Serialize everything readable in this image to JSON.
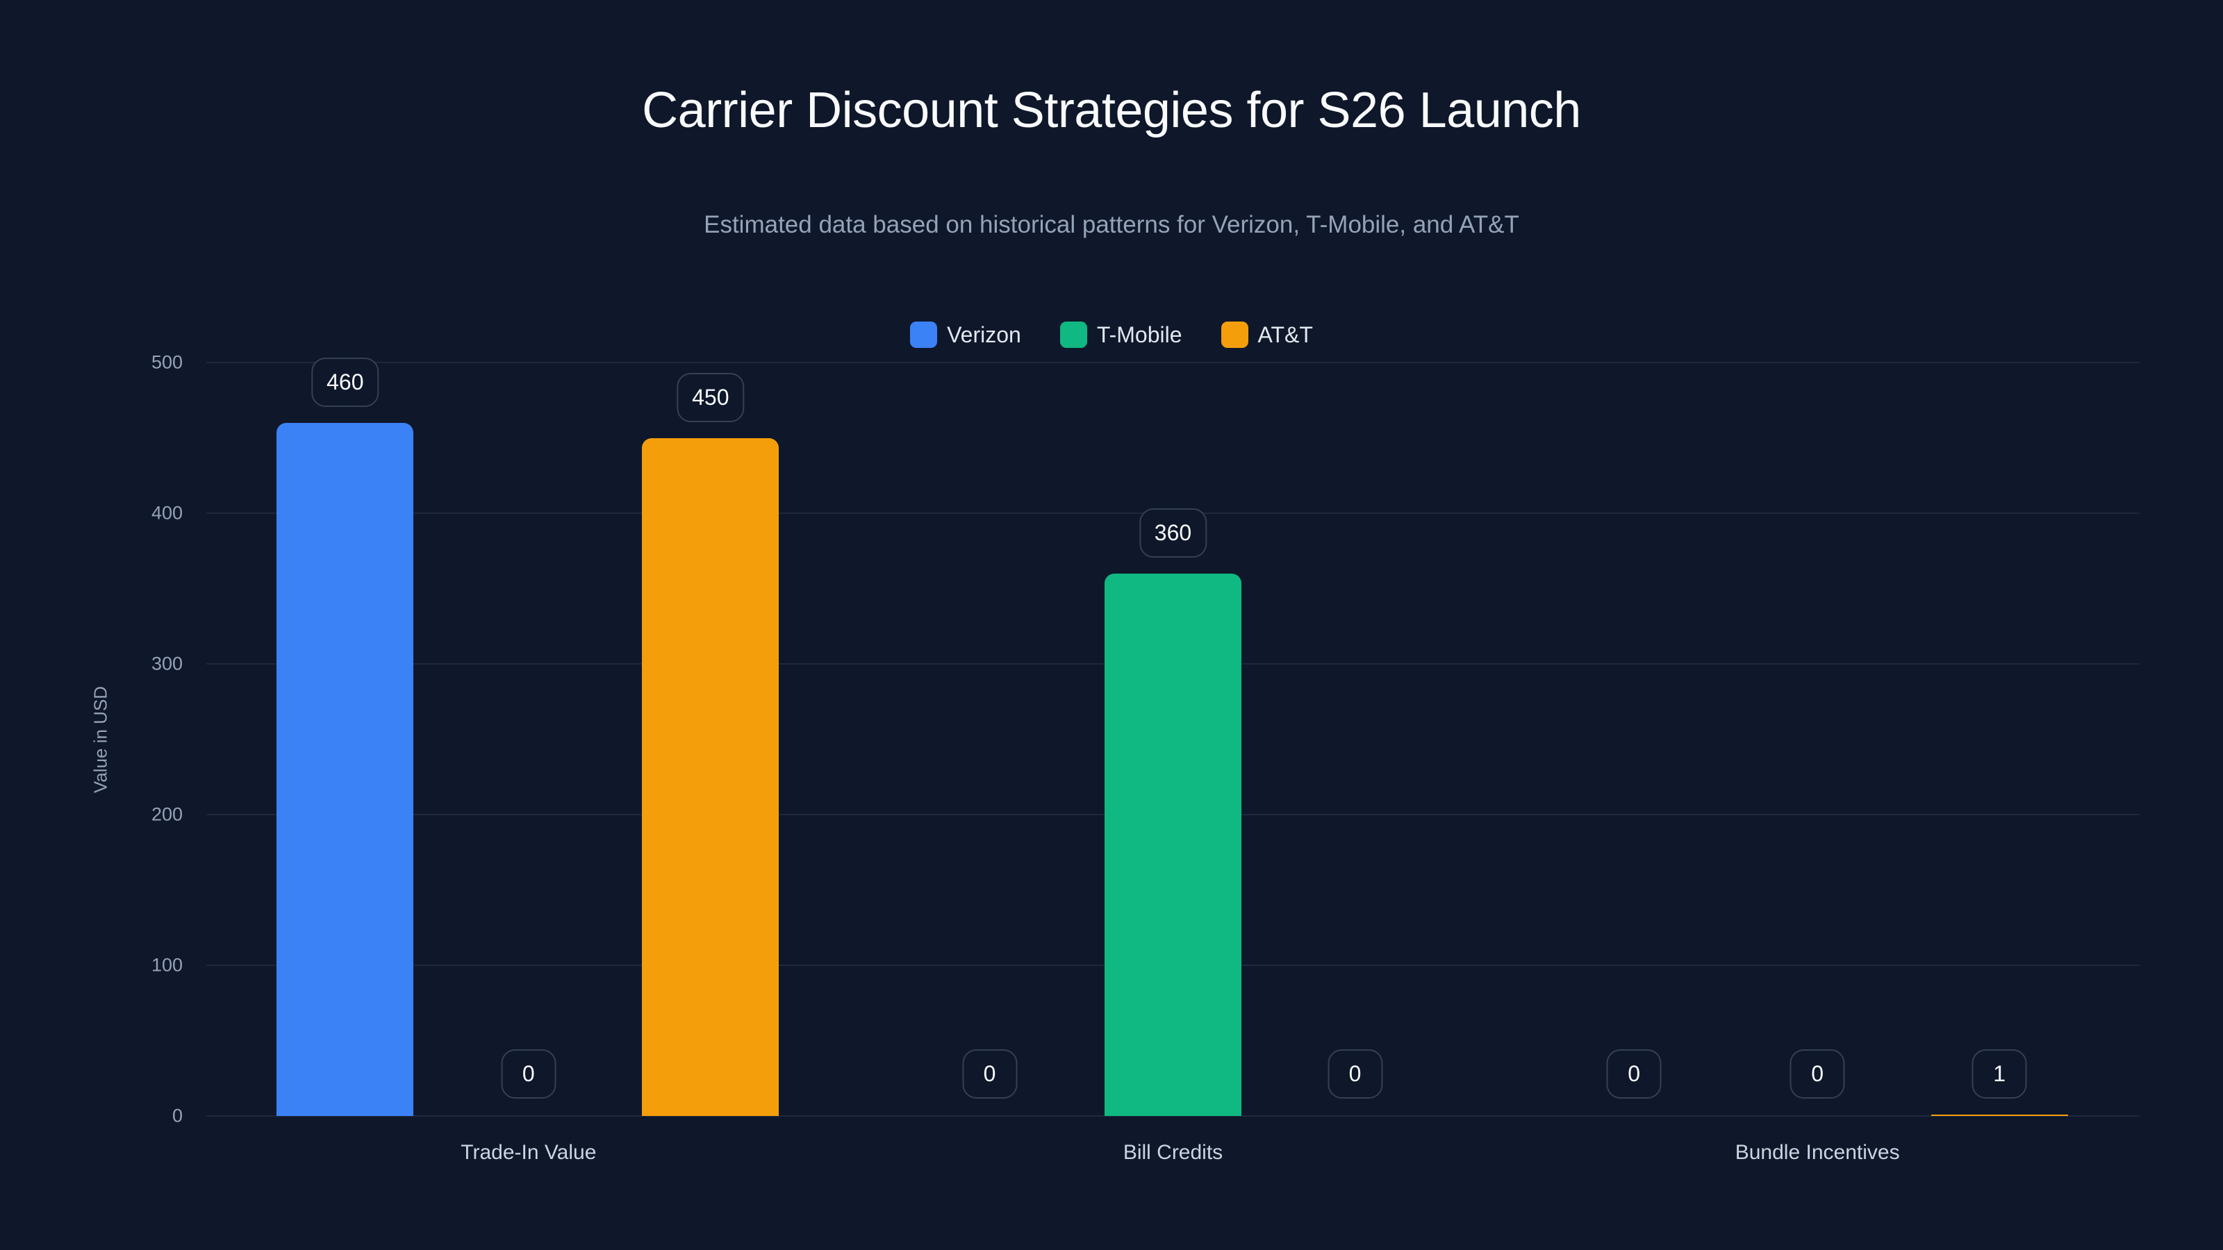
{
  "header": {
    "title": "Carrier Discount Strategies for S26 Launch",
    "subtitle": "Estimated data based on historical patterns for Verizon, T-Mobile, and AT&T"
  },
  "legend": [
    {
      "label": "Verizon",
      "color": "#3b82f6"
    },
    {
      "label": "T-Mobile",
      "color": "#10b981"
    },
    {
      "label": "AT&T",
      "color": "#f59e0b"
    }
  ],
  "axes": {
    "ylabel": "Value in USD",
    "yticks": [
      "0",
      "100",
      "200",
      "300",
      "400",
      "500"
    ],
    "xticks": [
      "Trade-In Value",
      "Bill Credits",
      "Bundle Incentives"
    ]
  },
  "chart_data": {
    "type": "bar",
    "title": "Carrier Discount Strategies for S26 Launch",
    "subtitle": "Estimated data based on historical patterns for Verizon, T-Mobile, and AT&T",
    "xlabel": "",
    "ylabel": "Value in USD",
    "ylim": [
      0,
      500
    ],
    "yticks": [
      0,
      100,
      200,
      300,
      400,
      500
    ],
    "grid": true,
    "legend_position": "top-center",
    "categories": [
      "Trade-In Value",
      "Bill Credits",
      "Bundle Incentives"
    ],
    "series": [
      {
        "name": "Verizon",
        "color": "#3b82f6",
        "values": [
          460,
          0,
          0
        ]
      },
      {
        "name": "T-Mobile",
        "color": "#10b981",
        "values": [
          0,
          360,
          0
        ]
      },
      {
        "name": "AT&T",
        "color": "#f59e0b",
        "values": [
          450,
          0,
          1
        ]
      }
    ],
    "data_labels": true
  }
}
